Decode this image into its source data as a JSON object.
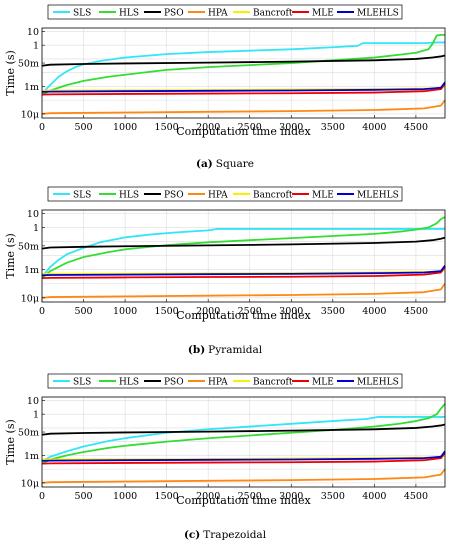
{
  "figure": {
    "xlabel": "Computation time index",
    "ylabel": "Time (s)"
  },
  "chart_data": [
    {
      "type": "line",
      "caption_letter": "(a)",
      "caption_text": "Square",
      "xlabel": "Computation time index",
      "ylabel": "Time (s)",
      "xlim": [
        0,
        4850
      ],
      "ylim_log10": [
        -5.3,
        1.25
      ],
      "yscale": "log",
      "grid": true,
      "legend_position": "top",
      "x_ticks": [
        "0",
        "500",
        "1000",
        "1500",
        "2000",
        "2500",
        "3000",
        "3500",
        "4000",
        "4500"
      ],
      "y_ticks": [
        {
          "label": "10",
          "log10": 1
        },
        {
          "label": "1",
          "log10": 0
        },
        {
          "label": "50m",
          "log10": -1.3
        },
        {
          "label": "1m",
          "log10": -3
        },
        {
          "label": "10μ",
          "log10": -5
        }
      ],
      "series": [
        {
          "name": "SLS",
          "color": "#33e5f5",
          "x": [
            0,
            100,
            200,
            300,
            400,
            500,
            700,
            1000,
            1500,
            2000,
            2500,
            3000,
            3500,
            3800,
            3860,
            4400,
            4600,
            4760,
            4850
          ],
          "log10_time": [
            -3.5,
            -2.9,
            -2.3,
            -1.9,
            -1.6,
            -1.4,
            -1.15,
            -0.9,
            -0.65,
            -0.5,
            -0.4,
            -0.3,
            -0.15,
            -0.05,
            0.15,
            0.15,
            0.15,
            0.2,
            0.2
          ]
        },
        {
          "name": "HLS",
          "color": "#33dd33",
          "x": [
            0,
            100,
            300,
            500,
            800,
            1000,
            1500,
            2000,
            2500,
            3000,
            3500,
            4000,
            4300,
            4500,
            4650,
            4700,
            4750,
            4800,
            4850
          ],
          "log10_time": [
            -3.6,
            -3.3,
            -2.9,
            -2.6,
            -2.3,
            -2.15,
            -1.8,
            -1.6,
            -1.45,
            -1.3,
            -1.1,
            -0.9,
            -0.7,
            -0.55,
            -0.3,
            0.1,
            0.7,
            0.75,
            0.75
          ]
        },
        {
          "name": "PSO",
          "color": "#000000",
          "x": [
            0,
            100,
            500,
            1000,
            2000,
            3000,
            4000,
            4500,
            4700,
            4800,
            4850
          ],
          "log10_time": [
            -1.5,
            -1.42,
            -1.37,
            -1.33,
            -1.27,
            -1.2,
            -1.1,
            -1.0,
            -0.9,
            -0.82,
            -0.75
          ]
        },
        {
          "name": "HPA",
          "color": "#ff8811",
          "x": [
            0,
            100,
            1000,
            2000,
            3000,
            4000,
            4600,
            4800,
            4850
          ],
          "log10_time": [
            -5.0,
            -4.95,
            -4.9,
            -4.85,
            -4.8,
            -4.72,
            -4.6,
            -4.4,
            -4.0
          ]
        },
        {
          "name": "Bancroft",
          "color": "#ffee00",
          "x": [
            0,
            1000,
            2000,
            3000,
            4000,
            4700,
            4850
          ],
          "log10_time": [
            -3.3,
            -3.28,
            -3.26,
            -3.23,
            -3.2,
            -3.15,
            -3.05
          ]
        },
        {
          "name": "MLE",
          "color": "#ee0000",
          "x": [
            0,
            100,
            1000,
            2000,
            3000,
            4000,
            4600,
            4800,
            4850
          ],
          "log10_time": [
            -3.6,
            -3.58,
            -3.55,
            -3.52,
            -3.5,
            -3.45,
            -3.35,
            -3.2,
            -2.8
          ]
        },
        {
          "name": "MLEHLS",
          "color": "#0000cc",
          "x": [
            0,
            100,
            1000,
            2000,
            3000,
            4000,
            4600,
            4800,
            4850
          ],
          "log10_time": [
            -3.4,
            -3.38,
            -3.35,
            -3.32,
            -3.3,
            -3.25,
            -3.2,
            -3.1,
            -2.7
          ]
        }
      ]
    },
    {
      "type": "line",
      "caption_letter": "(b)",
      "caption_text": "Pyramidal",
      "xlabel": "Computation time index",
      "ylabel": "Time (s)",
      "xlim": [
        0,
        4850
      ],
      "ylim_log10": [
        -5.3,
        1.25
      ],
      "yscale": "log",
      "grid": true,
      "legend_position": "top",
      "x_ticks": [
        "0",
        "500",
        "1000",
        "1500",
        "2000",
        "2500",
        "3000",
        "3500",
        "4000",
        "4500"
      ],
      "y_ticks": [
        {
          "label": "10",
          "log10": 1
        },
        {
          "label": "1",
          "log10": 0
        },
        {
          "label": "50m",
          "log10": -1.3
        },
        {
          "label": "1m",
          "log10": -3
        },
        {
          "label": "10μ",
          "log10": -5
        }
      ],
      "series": [
        {
          "name": "SLS",
          "color": "#33e5f5",
          "x": [
            0,
            100,
            200,
            300,
            500,
            700,
            1000,
            1300,
            1600,
            2000,
            2100,
            2500,
            3000,
            4000,
            4850
          ],
          "log10_time": [
            -3.5,
            -2.8,
            -2.3,
            -1.9,
            -1.45,
            -1.05,
            -0.7,
            -0.5,
            -0.35,
            -0.2,
            -0.1,
            -0.1,
            -0.1,
            -0.1,
            -0.1
          ]
        },
        {
          "name": "HLS",
          "color": "#33dd33",
          "x": [
            0,
            100,
            300,
            500,
            800,
            1000,
            1500,
            2000,
            2500,
            3000,
            3500,
            4000,
            4300,
            4500,
            4650,
            4750,
            4800,
            4850
          ],
          "log10_time": [
            -3.6,
            -3.1,
            -2.5,
            -2.1,
            -1.75,
            -1.55,
            -1.25,
            -1.05,
            -0.9,
            -0.75,
            -0.6,
            -0.45,
            -0.3,
            -0.15,
            0.0,
            0.3,
            0.6,
            0.75
          ]
        },
        {
          "name": "PSO",
          "color": "#000000",
          "x": [
            0,
            100,
            500,
            1000,
            2000,
            3000,
            4000,
            4500,
            4700,
            4800,
            4850
          ],
          "log10_time": [
            -1.5,
            -1.42,
            -1.37,
            -1.33,
            -1.27,
            -1.2,
            -1.1,
            -1.0,
            -0.9,
            -0.8,
            -0.72
          ]
        },
        {
          "name": "HPA",
          "color": "#ff8811",
          "x": [
            0,
            100,
            1000,
            2000,
            3000,
            4000,
            4600,
            4800,
            4850
          ],
          "log10_time": [
            -5.0,
            -4.95,
            -4.9,
            -4.85,
            -4.8,
            -4.72,
            -4.6,
            -4.4,
            -4.0
          ]
        },
        {
          "name": "Bancroft",
          "color": "#ffee00",
          "x": [
            0,
            1000,
            2000,
            3000,
            4000,
            4700,
            4850
          ],
          "log10_time": [
            -3.3,
            -3.28,
            -3.26,
            -3.23,
            -3.2,
            -3.15,
            -3.05
          ]
        },
        {
          "name": "MLE",
          "color": "#ee0000",
          "x": [
            0,
            100,
            1000,
            2000,
            3000,
            4000,
            4600,
            4800,
            4850
          ],
          "log10_time": [
            -3.6,
            -3.58,
            -3.55,
            -3.52,
            -3.5,
            -3.45,
            -3.35,
            -3.2,
            -2.8
          ]
        },
        {
          "name": "MLEHLS",
          "color": "#0000cc",
          "x": [
            0,
            100,
            1000,
            2000,
            3000,
            4000,
            4600,
            4800,
            4850
          ],
          "log10_time": [
            -3.4,
            -3.38,
            -3.35,
            -3.32,
            -3.3,
            -3.25,
            -3.2,
            -3.1,
            -2.7
          ]
        }
      ]
    },
    {
      "type": "line",
      "caption_letter": "(c)",
      "caption_text": "Trapezoidal",
      "xlabel": "Computation time index",
      "ylabel": "Time (s)",
      "xlim": [
        0,
        4850
      ],
      "ylim_log10": [
        -5.3,
        1.25
      ],
      "yscale": "log",
      "grid": true,
      "legend_position": "top",
      "x_ticks": [
        "0",
        "500",
        "1000",
        "1500",
        "2000",
        "2500",
        "3000",
        "3500",
        "4000",
        "4500"
      ],
      "y_ticks": [
        {
          "label": "10",
          "log10": 1
        },
        {
          "label": "1",
          "log10": 0
        },
        {
          "label": "50m",
          "log10": -1.3
        },
        {
          "label": "1m",
          "log10": -3
        },
        {
          "label": "10μ",
          "log10": -5
        }
      ],
      "series": [
        {
          "name": "SLS",
          "color": "#33e5f5",
          "x": [
            0,
            100,
            300,
            500,
            800,
            1000,
            1500,
            2000,
            2500,
            3000,
            3500,
            3900,
            4050,
            4500,
            4850
          ],
          "log10_time": [
            -3.4,
            -3.1,
            -2.7,
            -2.35,
            -1.95,
            -1.75,
            -1.35,
            -1.1,
            -0.9,
            -0.7,
            -0.5,
            -0.35,
            -0.2,
            -0.2,
            -0.2
          ]
        },
        {
          "name": "HLS",
          "color": "#33dd33",
          "x": [
            0,
            100,
            300,
            500,
            800,
            1000,
            1500,
            2000,
            2500,
            3000,
            3500,
            4000,
            4300,
            4500,
            4650,
            4750,
            4800,
            4850
          ],
          "log10_time": [
            -3.6,
            -3.3,
            -3.0,
            -2.75,
            -2.45,
            -2.3,
            -2.0,
            -1.75,
            -1.55,
            -1.35,
            -1.15,
            -0.9,
            -0.7,
            -0.5,
            -0.3,
            0.0,
            0.4,
            0.75
          ]
        },
        {
          "name": "PSO",
          "color": "#000000",
          "x": [
            0,
            100,
            500,
            1000,
            2000,
            3000,
            4000,
            4500,
            4700,
            4800,
            4850
          ],
          "log10_time": [
            -1.5,
            -1.42,
            -1.37,
            -1.33,
            -1.27,
            -1.2,
            -1.1,
            -1.0,
            -0.9,
            -0.82,
            -0.75
          ]
        },
        {
          "name": "HPA",
          "color": "#ff8811",
          "x": [
            0,
            100,
            1000,
            2000,
            3000,
            4000,
            4600,
            4800,
            4850
          ],
          "log10_time": [
            -5.0,
            -4.95,
            -4.9,
            -4.85,
            -4.8,
            -4.72,
            -4.6,
            -4.4,
            -4.0
          ]
        },
        {
          "name": "Bancroft",
          "color": "#ffee00",
          "x": [
            0,
            1000,
            2000,
            3000,
            4000,
            4700,
            4850
          ],
          "log10_time": [
            -3.3,
            -3.28,
            -3.26,
            -3.23,
            -3.2,
            -3.15,
            -3.05
          ]
        },
        {
          "name": "MLE",
          "color": "#ee0000",
          "x": [
            0,
            100,
            1000,
            2000,
            3000,
            4000,
            4600,
            4800,
            4850
          ],
          "log10_time": [
            -3.6,
            -3.58,
            -3.55,
            -3.52,
            -3.5,
            -3.45,
            -3.35,
            -3.2,
            -2.8
          ]
        },
        {
          "name": "MLEHLS",
          "color": "#0000cc",
          "x": [
            0,
            100,
            1000,
            2000,
            3000,
            4000,
            4600,
            4800,
            4850
          ],
          "log10_time": [
            -3.4,
            -3.38,
            -3.35,
            -3.32,
            -3.3,
            -3.25,
            -3.2,
            -3.1,
            -2.7
          ]
        }
      ]
    }
  ]
}
